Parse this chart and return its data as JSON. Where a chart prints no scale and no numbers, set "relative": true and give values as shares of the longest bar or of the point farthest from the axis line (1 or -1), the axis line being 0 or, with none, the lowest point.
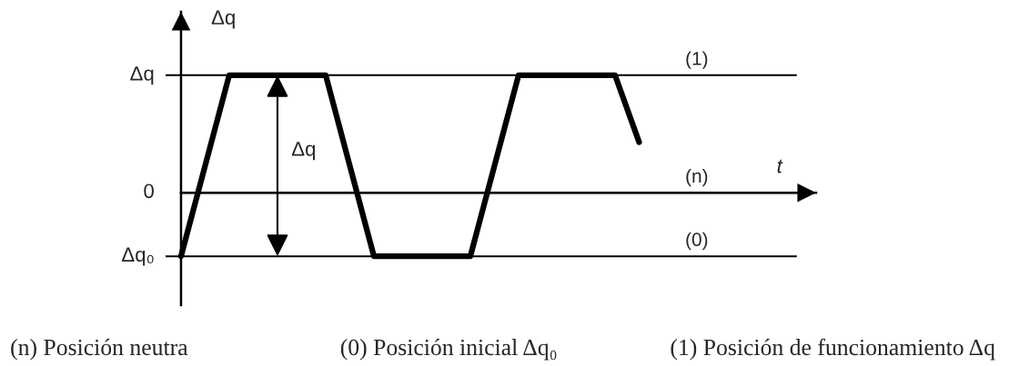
{
  "chart_data": {
    "type": "line",
    "relative": true,
    "ylabel": "Δq",
    "categories": [
      null,
      null,
      null,
      null,
      null,
      null,
      null,
      null,
      null,
      null,
      null,
      null,
      null,
      null,
      null,
      null,
      null,
      null,
      null,
      null
    ],
    "series": [
      {
        "color": "#000000",
        "values": [
          -0.54,
          0.23,
          1,
          1,
          1,
          1,
          1,
          0.23,
          -0.54,
          -0.54,
          -0.54,
          -0.54,
          -0.54,
          0.23,
          1,
          1,
          1,
          1,
          1,
          0.43
        ]
      }
    ],
    "ref_lines": [
      {
        "axis": "y",
        "value": 1,
        "color": "#000000"
      },
      {
        "axis": "y",
        "value": 0,
        "color": "#000000"
      },
      {
        "axis": "y",
        "value": -0.54,
        "color": "#000000"
      }
    ],
    "annotations": [
      "Δq",
      "0",
      "Δq₀",
      "(1)",
      "(n)",
      "(0)",
      "Δq",
      "t",
      "(n) Posición neutra",
      "(0) Posición inicial Δq₀",
      "(1) Posición de funcionamiento Δq"
    ]
  }
}
